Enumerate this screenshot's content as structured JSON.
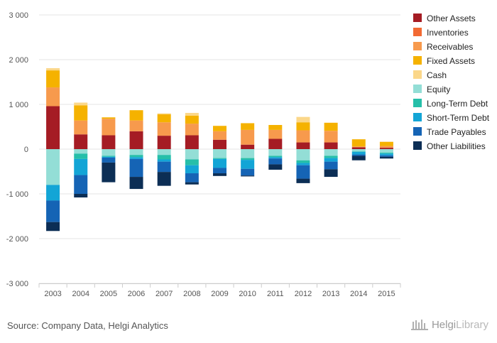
{
  "chart_data": {
    "type": "bar",
    "stacked": true,
    "categories": [
      "2003",
      "2004",
      "2005",
      "2006",
      "2007",
      "2008",
      "2009",
      "2010",
      "2011",
      "2012",
      "2013",
      "2014",
      "2015"
    ],
    "ylim": [
      -3000,
      3000
    ],
    "yticks": [
      3000,
      2000,
      1000,
      0,
      -1000,
      -2000,
      -3000
    ],
    "ytick_labels": [
      "3 000",
      "2 000",
      "1 000",
      "0",
      "-1 000",
      "-2 000",
      "-3 000"
    ],
    "grid": true,
    "legend_position": "right",
    "series": [
      {
        "name": "Other Assets",
        "color": "#a51c24",
        "values": [
          960,
          330,
          310,
          400,
          300,
          310,
          210,
          100,
          230,
          150,
          150,
          40,
          30
        ]
      },
      {
        "name": "Inventories",
        "color": "#f26a33",
        "values": [
          0,
          0,
          0,
          0,
          0,
          0,
          0,
          0,
          0,
          0,
          0,
          0,
          0
        ]
      },
      {
        "name": "Receivables",
        "color": "#f79a4d",
        "values": [
          420,
          310,
          370,
          240,
          300,
          260,
          190,
          330,
          200,
          270,
          260,
          20,
          40
        ]
      },
      {
        "name": "Fixed Assets",
        "color": "#f5b200",
        "values": [
          380,
          340,
          30,
          230,
          180,
          180,
          120,
          150,
          110,
          180,
          180,
          160,
          90
        ]
      },
      {
        "name": "Cash",
        "color": "#fbd78a",
        "values": [
          50,
          60,
          0,
          0,
          20,
          60,
          0,
          0,
          0,
          120,
          0,
          0,
          10
        ]
      },
      {
        "name": "Equity",
        "color": "#93ded6",
        "values": [
          -800,
          -100,
          -150,
          -130,
          -130,
          -230,
          -200,
          -200,
          -150,
          -250,
          -150,
          -50,
          -80
        ]
      },
      {
        "name": "Long-Term Debt",
        "color": "#26bfa9",
        "values": [
          0,
          -120,
          -20,
          -50,
          -100,
          -130,
          -20,
          -40,
          -30,
          -60,
          -50,
          -10,
          -20
        ]
      },
      {
        "name": "Short-Term Debt",
        "color": "#13a5d6",
        "values": [
          -350,
          -360,
          -20,
          -40,
          -50,
          -180,
          -200,
          -200,
          -30,
          -50,
          -80,
          -60,
          -40
        ]
      },
      {
        "name": "Trade Payables",
        "color": "#1564b5",
        "values": [
          -480,
          -420,
          -110,
          -400,
          -230,
          -200,
          -120,
          -150,
          -130,
          -300,
          -170,
          -30,
          -30
        ]
      },
      {
        "name": "Other Liabilities",
        "color": "#0c2e55",
        "values": [
          -200,
          -80,
          -440,
          -270,
          -310,
          -50,
          -60,
          -20,
          -120,
          -100,
          -170,
          -100,
          -40
        ]
      }
    ]
  },
  "footer": {
    "source": "Source: Company Data, Helgi Analytics",
    "brand_a": "Helgi",
    "brand_b": "Library"
  }
}
